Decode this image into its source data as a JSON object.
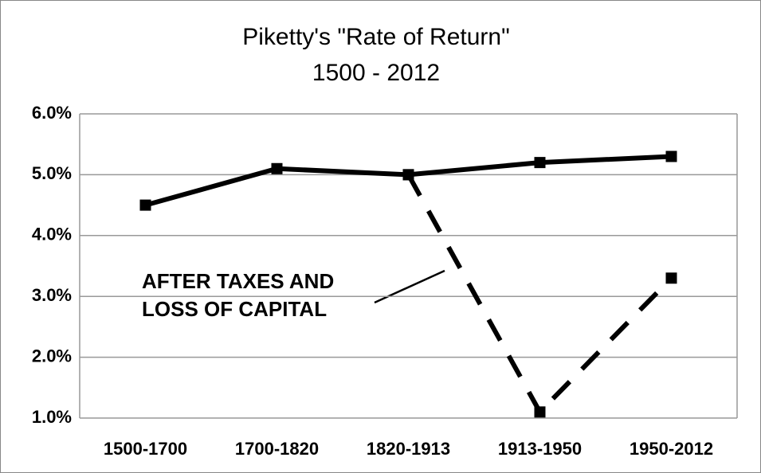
{
  "chart_data": {
    "type": "line",
    "title": [
      "Piketty's \"Rate of Return\"",
      "1500 - 2012"
    ],
    "categories": [
      "1500-1700",
      "1700-1820",
      "1820-1913",
      "1913-1950",
      "1950-2012"
    ],
    "series": [
      {
        "color": "#000000",
        "dash": false,
        "values": [
          4.5,
          5.1,
          5.0,
          5.2,
          5.3
        ]
      },
      {
        "color": "#000000",
        "dash": true,
        "values": [
          null,
          null,
          5.0,
          1.1,
          3.3
        ]
      }
    ],
    "annotation": [
      "AFTER TAXES AND",
      "LOSS OF CAPITAL"
    ],
    "ylim": [
      1,
      6
    ],
    "yticks": [
      {
        "value": 1,
        "label": "1.0%"
      },
      {
        "value": 2,
        "label": "2.0%"
      },
      {
        "value": 3,
        "label": "3.0%"
      },
      {
        "value": 4,
        "label": "4.0%"
      },
      {
        "value": 5,
        "label": "5.0%"
      },
      {
        "value": 6,
        "label": "6.0%"
      }
    ],
    "grid": true
  }
}
